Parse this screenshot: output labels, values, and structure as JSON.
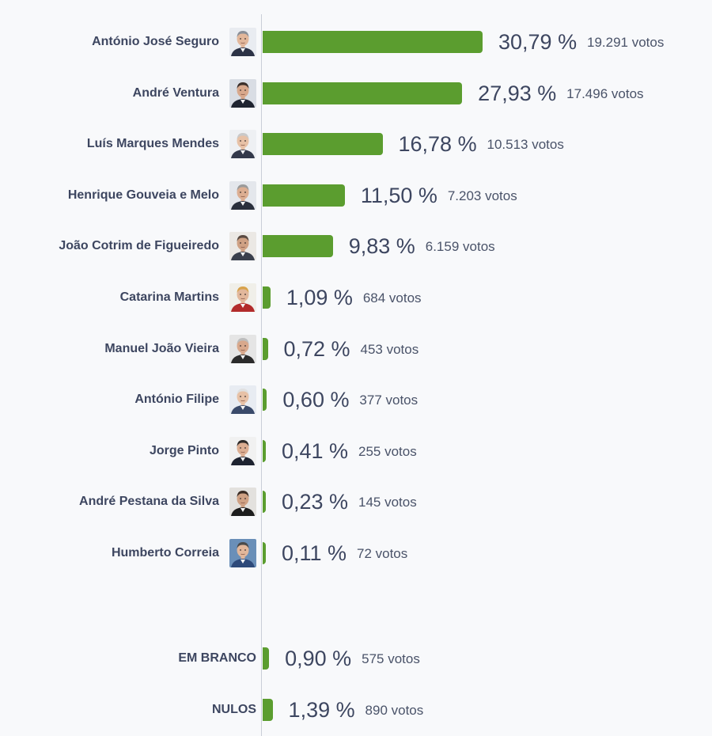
{
  "chart_data": {
    "type": "bar",
    "orientation": "horizontal",
    "title": "",
    "xlabel": "",
    "ylabel": "",
    "unit": "%",
    "grid": false,
    "legend": "none",
    "bar_color": "#5b9d2f",
    "candidates": [
      {
        "name": "António José Seguro",
        "value": 30.79,
        "pct_label": "30,79 %",
        "votes_label": "19.291 votos",
        "avatar_icon": "candidate-photo-icon"
      },
      {
        "name": "André Ventura",
        "value": 27.93,
        "pct_label": "27,93 %",
        "votes_label": "17.496 votos",
        "avatar_icon": "candidate-photo-icon"
      },
      {
        "name": "Luís Marques Mendes",
        "value": 16.78,
        "pct_label": "16,78 %",
        "votes_label": "10.513 votos",
        "avatar_icon": "candidate-photo-icon"
      },
      {
        "name": "Henrique Gouveia e Melo",
        "value": 11.5,
        "pct_label": "11,50 %",
        "votes_label": "7.203 votos",
        "avatar_icon": "candidate-photo-icon"
      },
      {
        "name": "João Cotrim de Figueiredo",
        "value": 9.83,
        "pct_label": "9,83 %",
        "votes_label": "6.159 votos",
        "avatar_icon": "candidate-photo-icon"
      },
      {
        "name": "Catarina Martins",
        "value": 1.09,
        "pct_label": "1,09 %",
        "votes_label": "684 votos",
        "avatar_icon": "candidate-photo-icon"
      },
      {
        "name": "Manuel João Vieira",
        "value": 0.72,
        "pct_label": "0,72 %",
        "votes_label": "453 votos",
        "avatar_icon": "candidate-photo-icon"
      },
      {
        "name": "António Filipe",
        "value": 0.6,
        "pct_label": "0,60 %",
        "votes_label": "377 votos",
        "avatar_icon": "candidate-photo-icon"
      },
      {
        "name": "Jorge Pinto",
        "value": 0.41,
        "pct_label": "0,41 %",
        "votes_label": "255 votos",
        "avatar_icon": "candidate-photo-icon"
      },
      {
        "name": "André Pestana da Silva",
        "value": 0.23,
        "pct_label": "0,23 %",
        "votes_label": "145 votos",
        "avatar_icon": "candidate-photo-icon"
      },
      {
        "name": "Humberto Correia",
        "value": 0.11,
        "pct_label": "0,11 %",
        "votes_label": "72 votos",
        "avatar_icon": "candidate-photo-icon"
      }
    ],
    "other": [
      {
        "name": "EM BRANCO",
        "value": 0.9,
        "pct_label": "0,90 %",
        "votes_label": "575 votos"
      },
      {
        "name": "NULOS",
        "value": 1.39,
        "pct_label": "1,39 %",
        "votes_label": "890 votos"
      }
    ]
  }
}
